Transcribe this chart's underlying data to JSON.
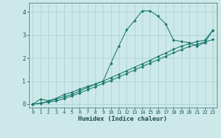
{
  "xlabel": "Humidex (Indice chaleur)",
  "ylabel": "",
  "bg_color": "#cce8e8",
  "line_color": "#1a7a6e",
  "grid_color": "#aad4d4",
  "xlim": [
    -0.5,
    23.5
  ],
  "ylim": [
    -0.15,
    4.4
  ],
  "xticks": [
    0,
    1,
    2,
    3,
    4,
    5,
    6,
    7,
    8,
    9,
    10,
    11,
    12,
    13,
    14,
    15,
    16,
    17,
    18,
    19,
    20,
    21,
    22,
    23
  ],
  "yticks": [
    0,
    1,
    2,
    3,
    4
  ],
  "curve1_x": [
    0,
    1,
    2,
    3,
    4,
    5,
    6,
    7,
    8,
    9,
    10,
    11,
    12,
    13,
    14,
    15,
    16,
    17,
    18,
    19,
    20,
    21,
    22,
    23
  ],
  "curve1_y": [
    0.0,
    0.22,
    0.15,
    0.25,
    0.42,
    0.52,
    0.65,
    0.77,
    0.87,
    1.0,
    1.78,
    2.52,
    3.22,
    3.62,
    4.05,
    4.05,
    3.82,
    3.48,
    2.78,
    2.72,
    2.67,
    2.52,
    2.67,
    3.2
  ],
  "curve2_x": [
    0,
    1,
    2,
    3,
    4,
    5,
    6,
    7,
    8,
    9,
    10,
    11,
    12,
    13,
    14,
    15,
    16,
    17,
    18,
    19,
    20,
    21,
    22,
    23
  ],
  "curve2_y": [
    0.0,
    0.05,
    0.12,
    0.22,
    0.32,
    0.42,
    0.57,
    0.72,
    0.87,
    1.0,
    1.15,
    1.3,
    1.45,
    1.6,
    1.75,
    1.9,
    2.07,
    2.22,
    2.38,
    2.52,
    2.62,
    2.72,
    2.78,
    3.2
  ],
  "curve3_x": [
    0,
    1,
    2,
    3,
    4,
    5,
    6,
    7,
    8,
    9,
    10,
    11,
    12,
    13,
    14,
    15,
    16,
    17,
    18,
    19,
    20,
    21,
    22,
    23
  ],
  "curve3_y": [
    0.0,
    0.04,
    0.09,
    0.14,
    0.24,
    0.36,
    0.48,
    0.62,
    0.76,
    0.9,
    1.03,
    1.18,
    1.33,
    1.48,
    1.63,
    1.78,
    1.93,
    2.08,
    2.23,
    2.37,
    2.5,
    2.6,
    2.7,
    2.8
  ]
}
